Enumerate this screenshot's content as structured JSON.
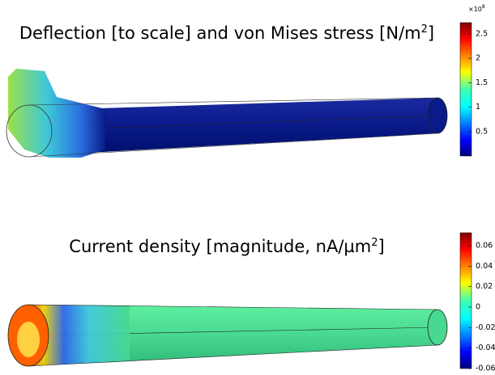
{
  "panels": [
    {
      "title": "Deflection [to scale] and von Mises stress [N/m",
      "title_sup": "2",
      "title_end": "]",
      "colorbar": {
        "multiplier": "×10",
        "multiplier_exp": "8",
        "range": [
          0,
          2.73
        ],
        "ticks": [
          2.5,
          2,
          1.5,
          1,
          0.5
        ]
      }
    },
    {
      "title": "Current density [magnitude, nA/µm",
      "title_sup": "2",
      "title_end": "]",
      "colorbar": {
        "range": [
          -0.06,
          0.0726
        ],
        "ticks": [
          0.06,
          0.04,
          0.02,
          0,
          -0.02,
          -0.04,
          -0.06
        ]
      }
    }
  ]
}
